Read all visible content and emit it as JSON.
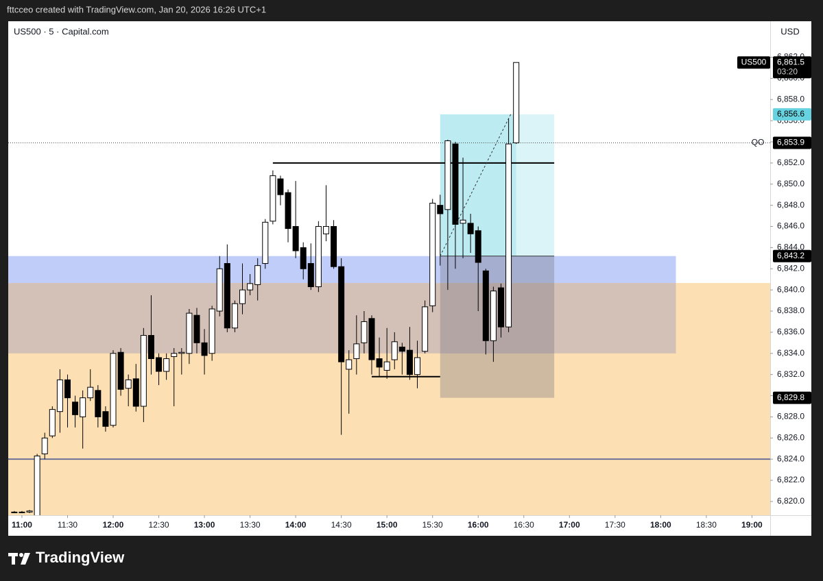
{
  "caption": "fttcceo created with TradingView.com, Jan 20, 2026 16:26 UTC+1",
  "brand": "TradingView",
  "chart_data": {
    "type": "candlestick",
    "title": "US500 · 5 · Capital.com",
    "currency": "USD",
    "up_color": "#ffffff",
    "down_color": "#000000",
    "x": [
      "10:55",
      "11:00",
      "11:05",
      "11:10",
      "11:15",
      "11:20",
      "11:25",
      "11:30",
      "11:35",
      "11:40",
      "11:45",
      "11:50",
      "11:55",
      "12:00",
      "12:05",
      "12:10",
      "12:15",
      "12:20",
      "12:25",
      "12:30",
      "12:35",
      "12:40",
      "12:45",
      "12:50",
      "12:55",
      "13:00",
      "13:05",
      "13:10",
      "13:15",
      "13:20",
      "13:25",
      "13:30",
      "13:35",
      "13:40",
      "13:45",
      "13:50",
      "13:55",
      "14:00",
      "14:05",
      "14:10",
      "14:15",
      "14:20",
      "14:25",
      "14:30",
      "14:35",
      "14:40",
      "14:45",
      "14:50",
      "14:55",
      "15:00",
      "15:05",
      "15:10",
      "15:15",
      "15:20",
      "15:25",
      "15:30",
      "15:35",
      "15:40",
      "15:45",
      "15:50",
      "15:55",
      "16:00",
      "16:05",
      "16:10",
      "16:15",
      "16:20",
      "16:25"
    ],
    "open": [
      6819.0,
      6819.0,
      6819.0,
      6818.5,
      6824.5,
      6826.2,
      6828.5,
      6831.5,
      6829.4,
      6828.0,
      6829.8,
      6830.5,
      6828.5,
      6827.2,
      6834.1,
      6830.7,
      6831.6,
      6829.0,
      6835.7,
      6833.6,
      6832.3,
      6833.7,
      6834.0,
      6834.0,
      6837.6,
      6835.0,
      6834.0,
      6838.0,
      6842.5,
      6836.4,
      6838.7,
      6840.0,
      6840.5,
      6842.5,
      6846.5,
      6850.5,
      6849.2,
      6846.0,
      6844.0,
      6842.5,
      6840.3,
      6845.3,
      6846.0,
      6842.2,
      6832.5,
      6833.5,
      6835.0,
      6837.3,
      6833.5,
      6832.4,
      6833.4,
      6834.6,
      6834.3,
      6832.0,
      6834.2,
      6838.5,
      6848.0,
      6847.6,
      6853.8,
      6846.3,
      6846.3,
      6845.6,
      6841.8,
      6835.2,
      6840.2,
      6836.5,
      6853.9
    ],
    "high": [
      6819.1,
      6819.1,
      6819.2,
      6824.5,
      6826.5,
      6829.0,
      6832.5,
      6832.0,
      6830.0,
      6830.5,
      6832.5,
      6831.0,
      6829.0,
      6834.3,
      6834.5,
      6832.0,
      6833.0,
      6836.4,
      6839.5,
      6834.0,
      6834.0,
      6834.5,
      6834.5,
      6838.2,
      6838.3,
      6836.3,
      6838.5,
      6843.2,
      6844.3,
      6839.0,
      6842.5,
      6841.5,
      6843.0,
      6846.7,
      6851.3,
      6850.8,
      6849.5,
      6850.3,
      6844.5,
      6844.4,
      6846.5,
      6849.9,
      6846.6,
      6843.0,
      6834.3,
      6837.6,
      6838.0,
      6837.6,
      6835.5,
      6836.4,
      6836.0,
      6835.0,
      6836.5,
      6835.2,
      6839.0,
      6848.6,
      6849.0,
      6854.2,
      6854.0,
      6852.5,
      6847.2,
      6846.0,
      6842.0,
      6840.3,
      6840.6,
      6856.2,
      6861.5
    ],
    "low": [
      6818.9,
      6818.9,
      6818.9,
      6818.5,
      6824.0,
      6826.0,
      6826.5,
      6827.0,
      6827.0,
      6825.0,
      6829.5,
      6827.0,
      6826.6,
      6827.0,
      6830.0,
      6829.0,
      6828.5,
      6827.5,
      6832.0,
      6831.0,
      6831.5,
      6829.0,
      6832.0,
      6833.0,
      6834.0,
      6832.0,
      6833.3,
      6837.5,
      6836.0,
      6836.0,
      6837.7,
      6839.5,
      6839.0,
      6842.0,
      6846.2,
      6848.0,
      6844.5,
      6843.0,
      6841.0,
      6840.0,
      6839.8,
      6844.6,
      6842.0,
      6826.3,
      6828.3,
      6832.0,
      6834.0,
      6832.0,
      6831.8,
      6831.6,
      6832.5,
      6832.0,
      6831.5,
      6830.7,
      6834.0,
      6837.9,
      6842.3,
      6840.0,
      6842.0,
      6843.0,
      6843.5,
      6838.0,
      6833.9,
      6833.2,
      6835.5,
      6836.0,
      6853.8
    ],
    "close": [
      6819.0,
      6819.0,
      6819.1,
      6824.3,
      6826.0,
      6828.7,
      6831.5,
      6829.8,
      6828.2,
      6829.8,
      6830.8,
      6828.0,
      6827.1,
      6834.0,
      6830.6,
      6831.5,
      6829.0,
      6835.7,
      6833.5,
      6832.3,
      6833.5,
      6834.0,
      6834.1,
      6837.8,
      6835.0,
      6833.8,
      6838.2,
      6842.0,
      6836.4,
      6838.7,
      6840.0,
      6840.6,
      6842.3,
      6846.4,
      6850.8,
      6849.0,
      6845.8,
      6843.7,
      6842.0,
      6840.3,
      6846.0,
      6846.0,
      6842.2,
      6833.2,
      6833.4,
      6834.9,
      6837.0,
      6833.4,
      6832.7,
      6833.2,
      6835.1,
      6834.2,
      6832.0,
      6833.6,
      6838.4,
      6848.2,
      6847.2,
      6854.1,
      6846.2,
      6846.6,
      6845.3,
      6842.6,
      6835.2,
      6839.9,
      6836.5,
      6853.8,
      6861.5
    ],
    "xlim": [
      "10:51",
      "19:12"
    ],
    "xticks": [
      "11:00",
      "11:30",
      "12:00",
      "12:30",
      "13:00",
      "13:30",
      "14:00",
      "14:30",
      "15:00",
      "15:30",
      "16:00",
      "16:30",
      "17:00",
      "17:30",
      "18:00",
      "18:30",
      "19:00"
    ],
    "ylim": [
      6818.7,
      6865.4
    ],
    "yticks": [
      {
        "value": 6820,
        "label": "6,820.0"
      },
      {
        "value": 6822,
        "label": "6,822.0"
      },
      {
        "value": 6824,
        "label": "6,824.0"
      },
      {
        "value": 6826,
        "label": "6,826.0"
      },
      {
        "value": 6828,
        "label": "6,828.0"
      },
      {
        "value": 6830,
        "label": "6,830.0"
      },
      {
        "value": 6832,
        "label": "6,832.0"
      },
      {
        "value": 6834,
        "label": "6,834.0"
      },
      {
        "value": 6836,
        "label": "6,836.0"
      },
      {
        "value": 6838,
        "label": "6,838.0"
      },
      {
        "value": 6840,
        "label": "6,840.0"
      },
      {
        "value": 6842,
        "label": "6,842.0"
      },
      {
        "value": 6844,
        "label": "6,844.0"
      },
      {
        "value": 6846,
        "label": "6,846.0"
      },
      {
        "value": 6848,
        "label": "6,848.0"
      },
      {
        "value": 6850,
        "label": "6,850.0"
      },
      {
        "value": 6852,
        "label": "6,852.0"
      },
      {
        "value": 6854,
        "label": "6,854.0"
      },
      {
        "value": 6856,
        "label": "6,856.0"
      },
      {
        "value": 6858,
        "label": "6,858.0"
      },
      {
        "value": 6860,
        "label": "6,860.0"
      },
      {
        "value": 6862,
        "label": "6,862.0"
      }
    ],
    "zones": [
      {
        "top": 6840.65,
        "color": "#fddfb4"
      },
      {
        "top": 6843.2,
        "bottom": 6840.65,
        "end": "18:10",
        "color": "#c0cdf8"
      },
      {
        "top": 6840.65,
        "bottom": 6834.0,
        "end": "18:10",
        "color": "#d3c0b7"
      }
    ],
    "position": {
      "start": "15:35",
      "end": "16:50",
      "entry": 6843.2,
      "target": 6856.6,
      "stop": 6829.8
    },
    "levels": [
      {
        "value": 6852.0,
        "start": "13:45",
        "end": "16:50",
        "color": "#000000"
      },
      {
        "value": 6831.8,
        "start": "14:50",
        "end": "15:35",
        "color": "#000000"
      },
      {
        "value": 6824.0,
        "color": "#6a7396"
      }
    ],
    "qo_line": {
      "value": 6853.9,
      "label": "QO"
    },
    "price_labels": [
      {
        "value": 6861.5,
        "label": "6,861.5",
        "sub": "03:20",
        "tag": "US500",
        "color": "#000000",
        "text_color": "#ffffff"
      },
      {
        "value": 6856.6,
        "label": "6,856.6",
        "color": "#67d3e0",
        "text_color": "#000000"
      },
      {
        "value": 6853.9,
        "label": "6,853.9",
        "color": "#000000",
        "text_color": "#ffffff"
      },
      {
        "value": 6843.2,
        "label": "6,843.2",
        "color": "#000000",
        "text_color": "#ffffff"
      },
      {
        "value": 6829.8,
        "label": "6,829.8",
        "color": "#000000",
        "text_color": "#ffffff"
      }
    ]
  }
}
